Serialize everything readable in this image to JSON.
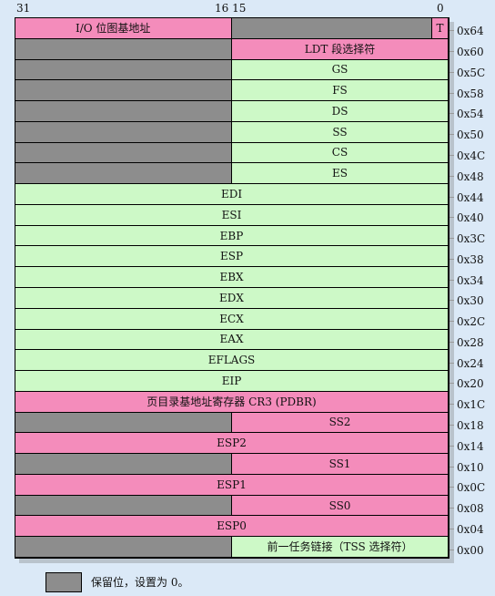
{
  "bit_labels": {
    "b31": "31",
    "b16_15": "16 15",
    "b0": "0"
  },
  "rows": [
    {
      "offset": "0x64",
      "cells": [
        {
          "span": "hi",
          "text": "I/O 位图基地址",
          "color": "pink",
          "align": "center-left"
        },
        {
          "span": "lo-main",
          "text": "",
          "color": "gray"
        },
        {
          "span": "t-bit",
          "text": "T",
          "color": "pink"
        }
      ]
    },
    {
      "offset": "0x60",
      "cells": [
        {
          "span": "hi",
          "text": "",
          "color": "gray"
        },
        {
          "span": "lo",
          "text": "LDT 段选择符",
          "color": "pink"
        }
      ]
    },
    {
      "offset": "0x5C",
      "cells": [
        {
          "span": "hi",
          "text": "",
          "color": "gray"
        },
        {
          "span": "lo",
          "text": "GS",
          "color": "green"
        }
      ]
    },
    {
      "offset": "0x58",
      "cells": [
        {
          "span": "hi",
          "text": "",
          "color": "gray"
        },
        {
          "span": "lo",
          "text": "FS",
          "color": "green"
        }
      ]
    },
    {
      "offset": "0x54",
      "cells": [
        {
          "span": "hi",
          "text": "",
          "color": "gray"
        },
        {
          "span": "lo",
          "text": "DS",
          "color": "green"
        }
      ]
    },
    {
      "offset": "0x50",
      "cells": [
        {
          "span": "hi",
          "text": "",
          "color": "gray"
        },
        {
          "span": "lo",
          "text": "SS",
          "color": "green"
        }
      ]
    },
    {
      "offset": "0x4C",
      "cells": [
        {
          "span": "hi",
          "text": "",
          "color": "gray"
        },
        {
          "span": "lo",
          "text": "CS",
          "color": "green"
        }
      ]
    },
    {
      "offset": "0x48",
      "cells": [
        {
          "span": "hi",
          "text": "",
          "color": "gray"
        },
        {
          "span": "lo",
          "text": "ES",
          "color": "green"
        }
      ]
    },
    {
      "offset": "0x44",
      "cells": [
        {
          "span": "full",
          "text": "EDI",
          "color": "green"
        }
      ]
    },
    {
      "offset": "0x40",
      "cells": [
        {
          "span": "full",
          "text": "ESI",
          "color": "green"
        }
      ]
    },
    {
      "offset": "0x3C",
      "cells": [
        {
          "span": "full",
          "text": "EBP",
          "color": "green"
        }
      ]
    },
    {
      "offset": "0x38",
      "cells": [
        {
          "span": "full",
          "text": "ESP",
          "color": "green"
        }
      ]
    },
    {
      "offset": "0x34",
      "cells": [
        {
          "span": "full",
          "text": "EBX",
          "color": "green"
        }
      ]
    },
    {
      "offset": "0x30",
      "cells": [
        {
          "span": "full",
          "text": "EDX",
          "color": "green"
        }
      ]
    },
    {
      "offset": "0x2C",
      "cells": [
        {
          "span": "full",
          "text": "ECX",
          "color": "green"
        }
      ]
    },
    {
      "offset": "0x28",
      "cells": [
        {
          "span": "full",
          "text": "EAX",
          "color": "green"
        }
      ]
    },
    {
      "offset": "0x24",
      "cells": [
        {
          "span": "full",
          "text": "EFLAGS",
          "color": "green"
        }
      ]
    },
    {
      "offset": "0x20",
      "cells": [
        {
          "span": "full",
          "text": "EIP",
          "color": "green"
        }
      ]
    },
    {
      "offset": "0x1C",
      "cells": [
        {
          "span": "full",
          "text": "页目录基地址寄存器 CR3 (PDBR)",
          "color": "pink"
        }
      ]
    },
    {
      "offset": "0x18",
      "cells": [
        {
          "span": "hi",
          "text": "",
          "color": "gray"
        },
        {
          "span": "lo",
          "text": "SS2",
          "color": "pink"
        }
      ]
    },
    {
      "offset": "0x14",
      "cells": [
        {
          "span": "full",
          "text": "ESP2",
          "color": "pink"
        }
      ]
    },
    {
      "offset": "0x10",
      "cells": [
        {
          "span": "hi",
          "text": "",
          "color": "gray"
        },
        {
          "span": "lo",
          "text": "SS1",
          "color": "pink"
        }
      ]
    },
    {
      "offset": "0x0C",
      "cells": [
        {
          "span": "full",
          "text": "ESP1",
          "color": "pink"
        }
      ]
    },
    {
      "offset": "0x08",
      "cells": [
        {
          "span": "hi",
          "text": "",
          "color": "gray"
        },
        {
          "span": "lo",
          "text": "SS0",
          "color": "pink"
        }
      ]
    },
    {
      "offset": "0x04",
      "cells": [
        {
          "span": "full",
          "text": "ESP0",
          "color": "pink"
        }
      ]
    },
    {
      "offset": "0x00",
      "cells": [
        {
          "span": "hi",
          "text": "",
          "color": "gray"
        },
        {
          "span": "lo",
          "text": "前一任务链接（TSS 选择符）",
          "color": "green"
        }
      ]
    }
  ],
  "legend": {
    "text": "保留位，设置为 0。",
    "swatch_color": "#8d8d8d"
  },
  "colors": {
    "pink": "#f48cbb",
    "green": "#cdf9c7",
    "gray": "#8d8d8d",
    "background": "#dbe9f7"
  }
}
